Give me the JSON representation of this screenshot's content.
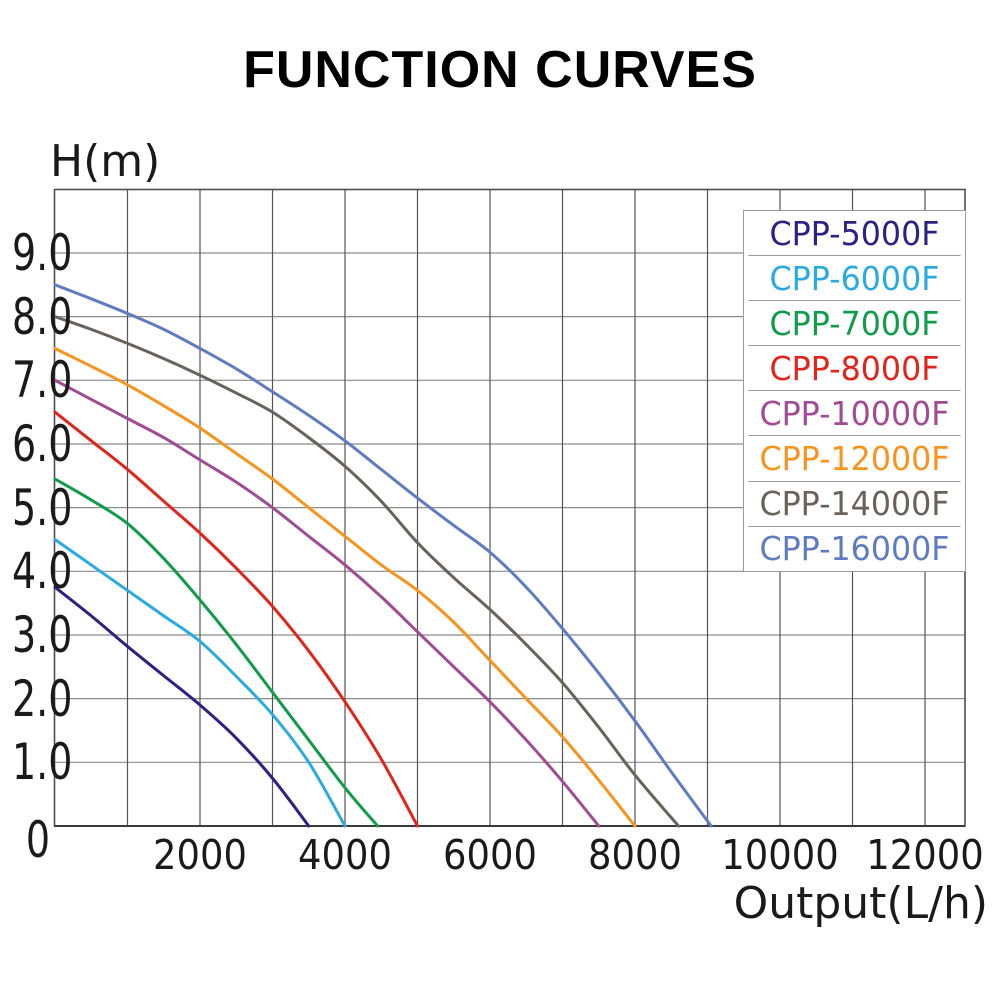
{
  "title": "FUNCTION CURVES",
  "chart_data": {
    "type": "line",
    "title": "FUNCTION CURVES",
    "xlabel": "Output(L/h)",
    "ylabel": "H(m)",
    "xlim": [
      0,
      12550
    ],
    "ylim": [
      0,
      10
    ],
    "grid": true,
    "grid_x_step": 1000,
    "grid_y_step": 1,
    "legend_position": "top-right",
    "x_ticks": [
      {
        "value": 2000,
        "label": "2000"
      },
      {
        "value": 4000,
        "label": "4000"
      },
      {
        "value": 6000,
        "label": "6000"
      },
      {
        "value": 8000,
        "label": "8000"
      },
      {
        "value": 10000,
        "label": "10000"
      },
      {
        "value": 12000,
        "label": "12000"
      }
    ],
    "y_ticks": [
      {
        "value": 9,
        "label": "9.0",
        "dy": 0
      },
      {
        "value": 8,
        "label": "8.0",
        "dy": 0
      },
      {
        "value": 7,
        "label": "7.0",
        "dy": 0
      },
      {
        "value": 6,
        "label": "6.0",
        "dy": 0
      },
      {
        "value": 5,
        "label": "5.0",
        "dy": 0
      },
      {
        "value": 4,
        "label": "4.0",
        "dy": 0
      },
      {
        "value": 3,
        "label": "3.0",
        "dy": 0
      },
      {
        "value": 2,
        "label": "2.0",
        "dy": 0
      },
      {
        "value": 1,
        "label": "1.0",
        "dy": 0
      },
      {
        "value": 0,
        "label": "0",
        "dy": 14
      }
    ],
    "style": {
      "axis_color": "#4d4d4d",
      "v_grid_color": "#555555",
      "h_grid_color": "#8c8c8c",
      "curve_width": 3
    },
    "series": [
      {
        "name": "CPP-5000F",
        "color": "#2b2383",
        "shutoff_head_m": 3.75,
        "max_flow_lh": 3500,
        "points": [
          [
            0,
            3.75
          ],
          [
            500,
            3.3
          ],
          [
            1000,
            2.82
          ],
          [
            1500,
            2.36
          ],
          [
            2000,
            1.9
          ],
          [
            2500,
            1.38
          ],
          [
            3000,
            0.75
          ],
          [
            3500,
            0
          ]
        ]
      },
      {
        "name": "CPP-6000F",
        "color": "#29abe2",
        "shutoff_head_m": 4.5,
        "max_flow_lh": 4000,
        "points": [
          [
            0,
            4.5
          ],
          [
            500,
            4.1
          ],
          [
            1000,
            3.7
          ],
          [
            1500,
            3.3
          ],
          [
            2000,
            2.9
          ],
          [
            2500,
            2.35
          ],
          [
            3000,
            1.75
          ],
          [
            3500,
            1.0
          ],
          [
            4000,
            0
          ]
        ]
      },
      {
        "name": "CPP-7000F",
        "color": "#109c4b",
        "shutoff_head_m": 5.45,
        "max_flow_lh": 4450,
        "points": [
          [
            0,
            5.45
          ],
          [
            500,
            5.12
          ],
          [
            1000,
            4.75
          ],
          [
            1500,
            4.2
          ],
          [
            2000,
            3.55
          ],
          [
            2500,
            2.85
          ],
          [
            3000,
            2.1
          ],
          [
            3500,
            1.35
          ],
          [
            4000,
            0.6
          ],
          [
            4450,
            0
          ]
        ]
      },
      {
        "name": "CPP-8000F",
        "color": "#e1251b",
        "shutoff_head_m": 6.5,
        "max_flow_lh": 5000,
        "points": [
          [
            0,
            6.5
          ],
          [
            500,
            6.05
          ],
          [
            1000,
            5.6
          ],
          [
            1500,
            5.1
          ],
          [
            2000,
            4.6
          ],
          [
            2500,
            4.05
          ],
          [
            3000,
            3.45
          ],
          [
            3500,
            2.75
          ],
          [
            4000,
            1.95
          ],
          [
            4500,
            1.05
          ],
          [
            5000,
            0
          ]
        ]
      },
      {
        "name": "CPP-10000F",
        "color": "#a04b93",
        "shutoff_head_m": 7.0,
        "max_flow_lh": 7500,
        "points": [
          [
            0,
            7.0
          ],
          [
            500,
            6.7
          ],
          [
            1000,
            6.4
          ],
          [
            1500,
            6.1
          ],
          [
            2000,
            5.75
          ],
          [
            2500,
            5.4
          ],
          [
            3000,
            5.0
          ],
          [
            3500,
            4.55
          ],
          [
            4000,
            4.1
          ],
          [
            4500,
            3.6
          ],
          [
            5000,
            3.05
          ],
          [
            5500,
            2.5
          ],
          [
            6000,
            1.95
          ],
          [
            6500,
            1.35
          ],
          [
            7000,
            0.7
          ],
          [
            7500,
            0
          ]
        ]
      },
      {
        "name": "CPP-12000F",
        "color": "#f7941e",
        "shutoff_head_m": 7.5,
        "max_flow_lh": 8000,
        "points": [
          [
            0,
            7.5
          ],
          [
            500,
            7.22
          ],
          [
            1000,
            6.93
          ],
          [
            1500,
            6.6
          ],
          [
            2000,
            6.25
          ],
          [
            2500,
            5.85
          ],
          [
            3000,
            5.45
          ],
          [
            3500,
            5.0
          ],
          [
            4000,
            4.55
          ],
          [
            4500,
            4.1
          ],
          [
            5000,
            3.7
          ],
          [
            5500,
            3.2
          ],
          [
            6000,
            2.6
          ],
          [
            6500,
            2.0
          ],
          [
            7000,
            1.4
          ],
          [
            7500,
            0.72
          ],
          [
            8000,
            0
          ]
        ]
      },
      {
        "name": "CPP-14000F",
        "color": "#6a6259",
        "shutoff_head_m": 8.0,
        "max_flow_lh": 8600,
        "points": [
          [
            0,
            8.0
          ],
          [
            500,
            7.8
          ],
          [
            1000,
            7.58
          ],
          [
            1500,
            7.34
          ],
          [
            2000,
            7.08
          ],
          [
            2500,
            6.8
          ],
          [
            3000,
            6.5
          ],
          [
            3500,
            6.1
          ],
          [
            4000,
            5.65
          ],
          [
            4500,
            5.1
          ],
          [
            5000,
            4.45
          ],
          [
            5500,
            3.9
          ],
          [
            6000,
            3.4
          ],
          [
            6500,
            2.85
          ],
          [
            7000,
            2.25
          ],
          [
            7500,
            1.55
          ],
          [
            8000,
            0.8
          ],
          [
            8600,
            0
          ]
        ]
      },
      {
        "name": "CPP-16000F",
        "color": "#5f7cc1",
        "shutoff_head_m": 8.5,
        "max_flow_lh": 9050,
        "points": [
          [
            0,
            8.5
          ],
          [
            500,
            8.28
          ],
          [
            1000,
            8.05
          ],
          [
            1500,
            7.8
          ],
          [
            2000,
            7.5
          ],
          [
            2500,
            7.18
          ],
          [
            3000,
            6.82
          ],
          [
            3500,
            6.45
          ],
          [
            4000,
            6.05
          ],
          [
            4500,
            5.6
          ],
          [
            5000,
            5.15
          ],
          [
            5500,
            4.72
          ],
          [
            6000,
            4.3
          ],
          [
            6500,
            3.75
          ],
          [
            7000,
            3.1
          ],
          [
            7500,
            2.4
          ],
          [
            8000,
            1.65
          ],
          [
            8500,
            0.85
          ],
          [
            9050,
            0
          ]
        ]
      }
    ]
  }
}
